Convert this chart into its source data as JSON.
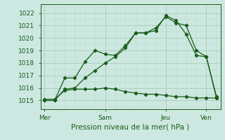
{
  "bg_color": "#cce8e0",
  "line_color": "#1a5c1a",
  "grid_color_major": "#aaccbb",
  "grid_color_minor": "#bbddcc",
  "title": "Pression niveau de la mer( hPa )",
  "ylabel_ticks": [
    1015,
    1016,
    1017,
    1018,
    1019,
    1020,
    1021,
    1022
  ],
  "xtick_labels": [
    "Mer",
    "Sam",
    "Jeu",
    "Ven"
  ],
  "xtick_positions": [
    0,
    3,
    6,
    8
  ],
  "ylim": [
    1014.3,
    1022.7
  ],
  "xlim": [
    -0.2,
    8.7
  ],
  "series1_x": [
    0,
    0.5,
    1.0,
    1.5,
    2.0,
    2.5,
    3.0,
    3.5,
    4.0,
    4.5,
    5.0,
    5.5,
    6.0,
    6.5,
    7.0,
    7.5,
    8.0,
    8.5
  ],
  "series1_y": [
    1015.0,
    1015.0,
    1016.8,
    1016.8,
    1018.1,
    1019.0,
    1018.7,
    1018.6,
    1019.4,
    1020.4,
    1020.4,
    1020.6,
    1021.8,
    1021.4,
    1020.3,
    1018.6,
    1018.5,
    1015.2
  ],
  "series2_x": [
    0,
    0.5,
    1.0,
    1.5,
    2.0,
    2.5,
    3.0,
    3.5,
    4.0,
    4.5,
    5.0,
    5.5,
    6.0,
    6.5,
    7.0,
    7.5,
    8.0,
    8.5
  ],
  "series2_y": [
    1015.0,
    1015.0,
    1015.9,
    1016.0,
    1016.8,
    1017.4,
    1018.0,
    1018.5,
    1019.2,
    1020.4,
    1020.4,
    1020.8,
    1021.7,
    1021.2,
    1021.0,
    1019.0,
    1018.5,
    1015.3
  ],
  "series3_x": [
    0,
    0.5,
    1.0,
    1.5,
    2.0,
    2.5,
    3.0,
    3.5,
    4.0,
    4.5,
    5.0,
    5.5,
    6.0,
    6.5,
    7.0,
    7.5,
    8.0,
    8.5
  ],
  "series3_y": [
    1015.1,
    1015.1,
    1015.8,
    1015.9,
    1015.9,
    1015.9,
    1016.0,
    1015.9,
    1015.7,
    1015.6,
    1015.5,
    1015.5,
    1015.4,
    1015.3,
    1015.3,
    1015.2,
    1015.2,
    1015.2
  ],
  "tick_fontsize": 6.5,
  "xlabel_fontsize": 7.5,
  "linewidth": 0.9,
  "markersize": 2.2
}
